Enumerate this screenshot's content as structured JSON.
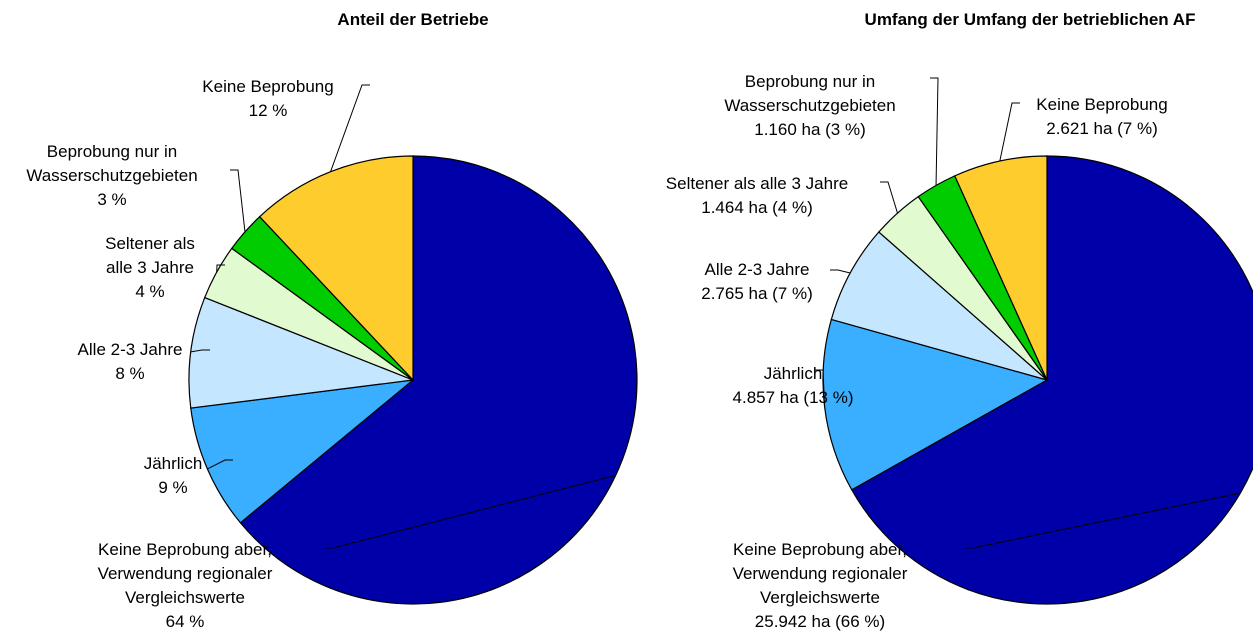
{
  "chart_data": [
    {
      "type": "pie",
      "title": "Anteil der Betriebe",
      "categories": [
        "Keine Beprobung aber, Verwendung regionaler Vergleichswerte",
        "Jährlich",
        "Alle 2-3 Jahre",
        "Seltener als alle 3 Jahre",
        "Beprobung nur in Wasserschutzgebieten",
        "Keine Beprobung"
      ],
      "values": [
        64,
        9,
        8,
        4,
        3,
        12
      ],
      "value_labels": [
        "64 %",
        "9 %",
        "8 %",
        "4 %",
        "3 %",
        "12 %"
      ],
      "colors": [
        "#0000a8",
        "#3aaeff",
        "#c4e6ff",
        "#e2fad0",
        "#00cc00",
        "#ffcc2e"
      ]
    },
    {
      "type": "pie",
      "title": "Umfang der Umfang der betrieblichen AF",
      "categories": [
        "Keine Beprobung aber, Verwendung regionaler Vergleichswerte",
        "Jährlich",
        "Alle 2-3 Jahre",
        "Seltener als alle 3 Jahre",
        "Beprobung nur in Wasserschutzgebieten",
        "Keine Beprobung"
      ],
      "values": [
        25942,
        4857,
        2765,
        1464,
        1160,
        2621
      ],
      "value_labels": [
        "25.942 ha (66 %)",
        "4.857 ha (13 %)",
        "2.765 ha (7 %)",
        "1.464 ha (4 %)",
        "1.160 ha (3 %)",
        "2.621 ha (7 %)"
      ],
      "colors": [
        "#0000a8",
        "#3aaeff",
        "#c4e6ff",
        "#e2fad0",
        "#00cc00",
        "#ffcc2e"
      ]
    }
  ]
}
